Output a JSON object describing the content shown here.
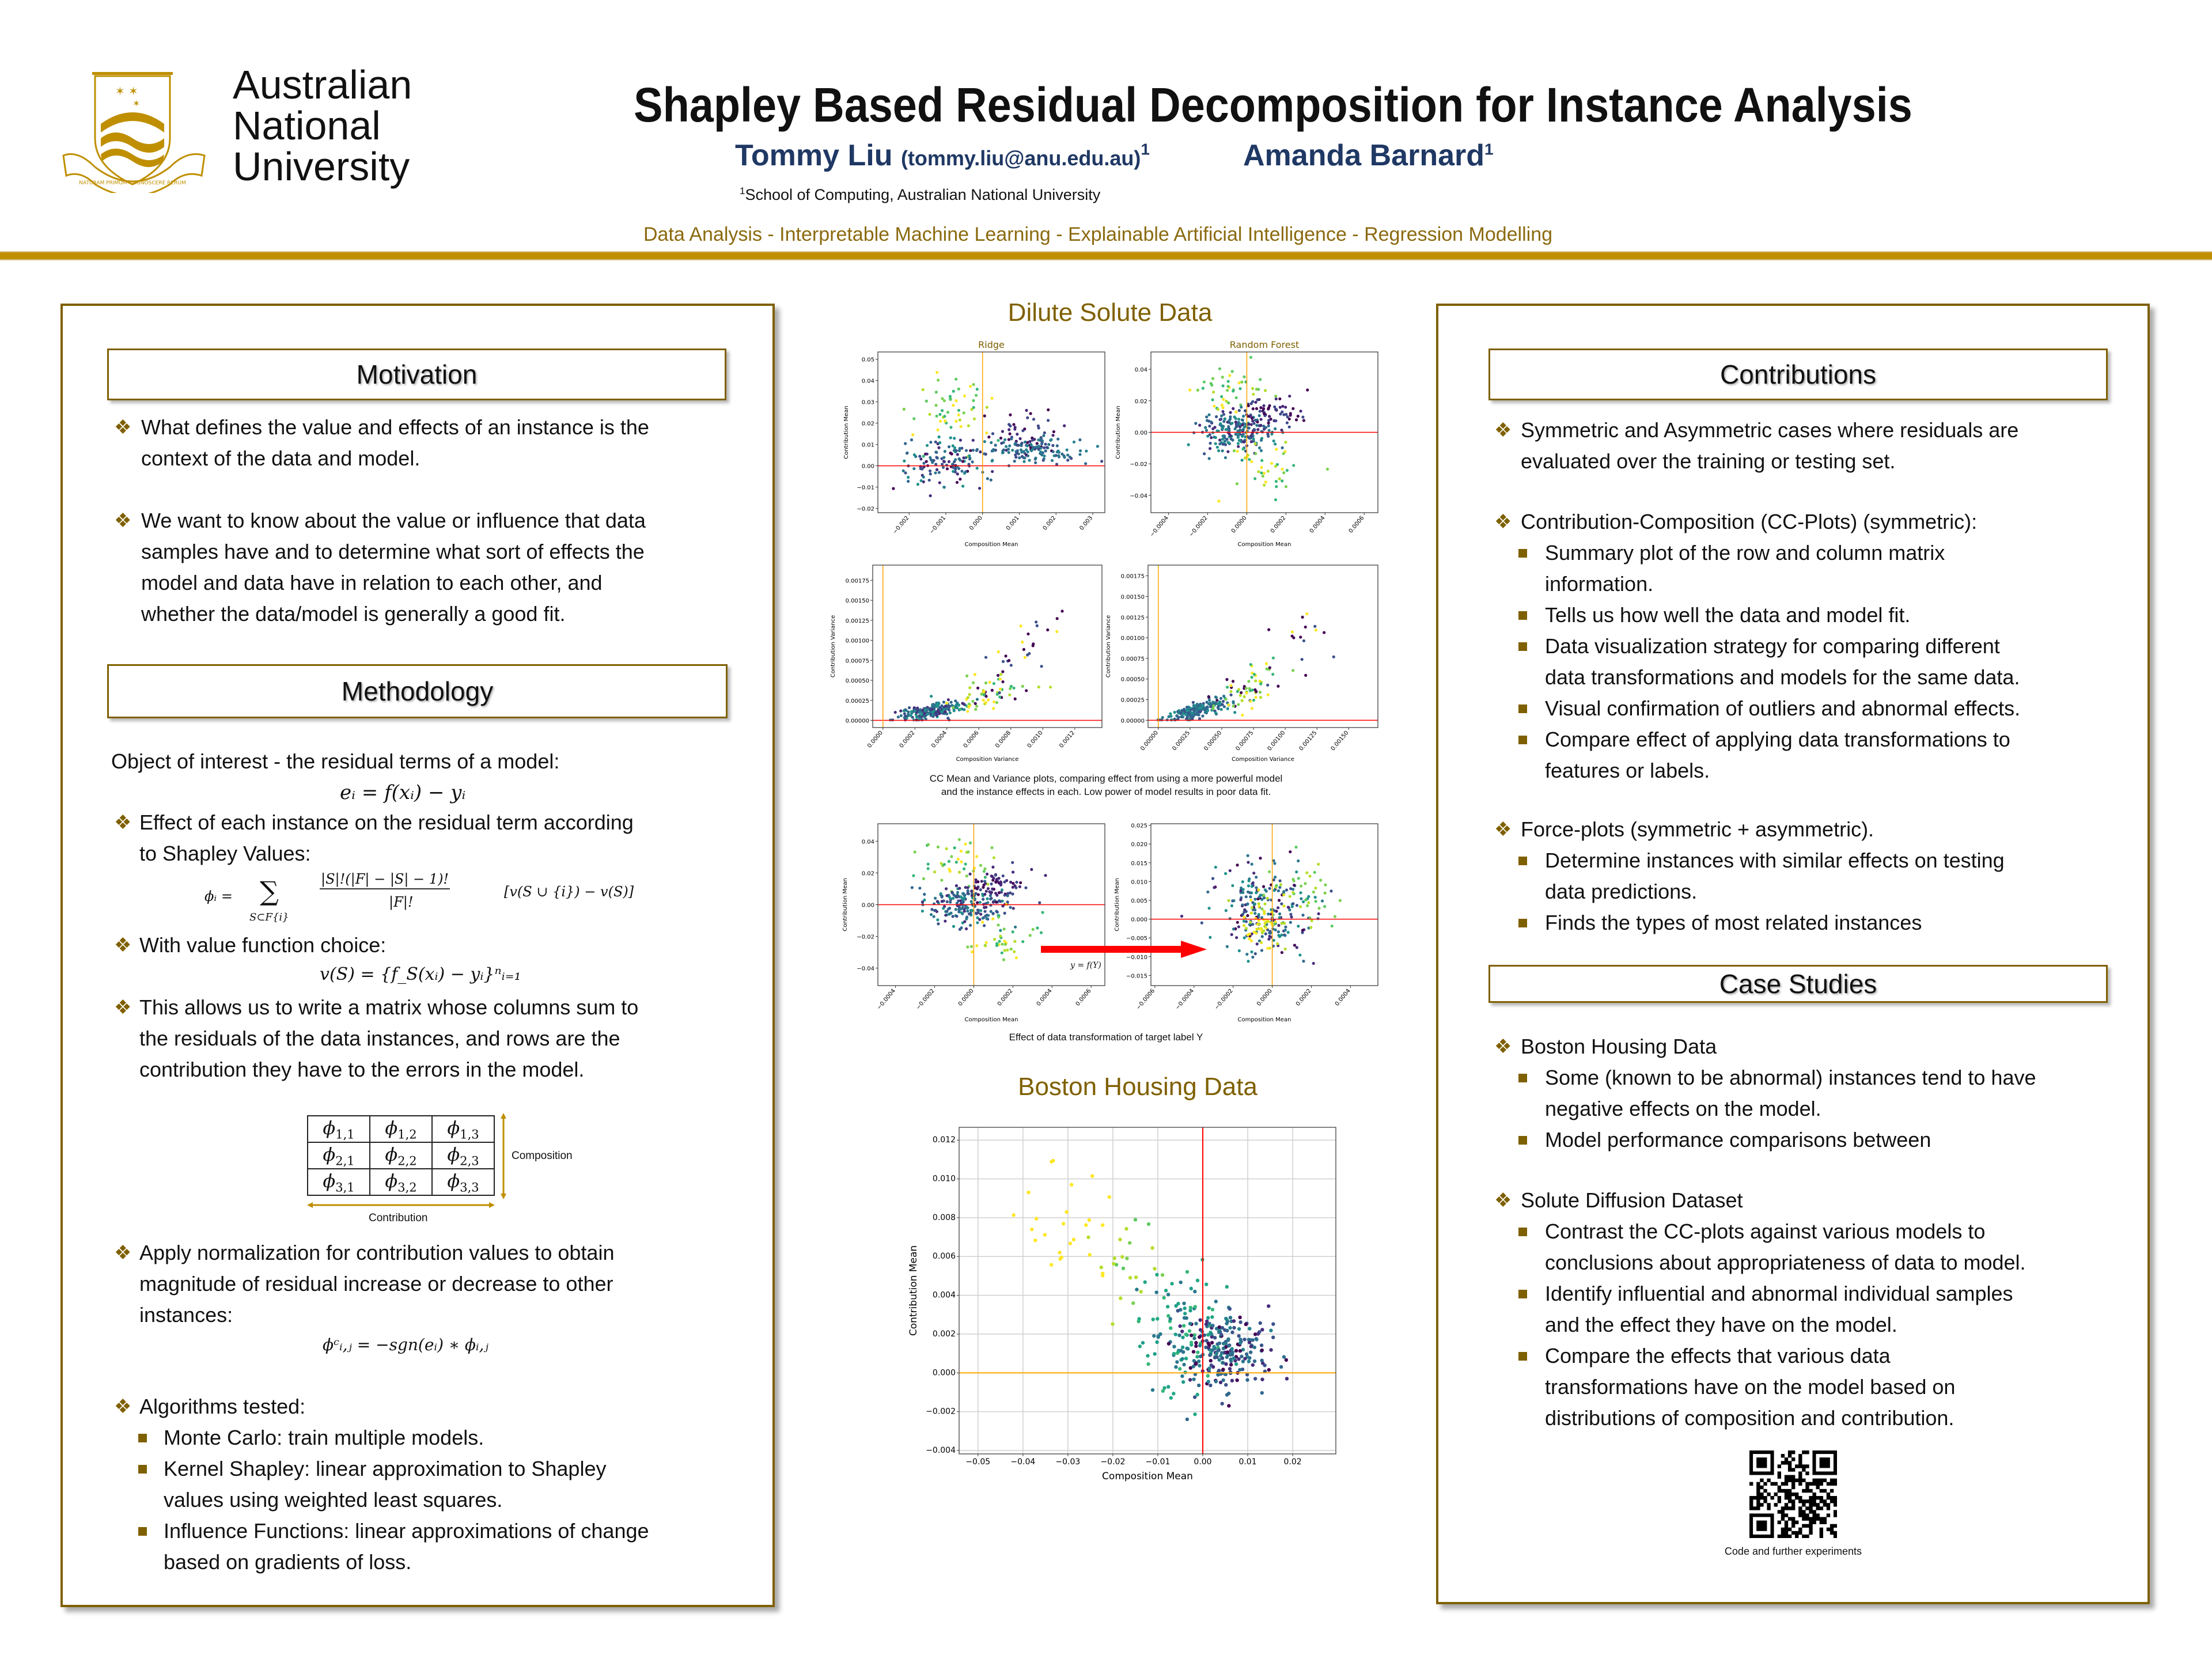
{
  "header": {
    "university": "Australian\nNational\nUniversity",
    "crest_motto": "NATURAM PRIMUM COGNOSCERE RERUM",
    "title": "Shapley Based Residual Decomposition for Instance Analysis",
    "author1_name": "Tommy Liu",
    "author1_email": "(tommy.liu@anu.edu.au)",
    "author1_sup": "1",
    "author2_name": "Amanda Barnard",
    "author2_sup": "1",
    "affiliation_sup": "1",
    "affiliation": "School of Computing, Australian National University",
    "keywords": "Data Analysis - Interpretable Machine Learning  - Explainable Artificial Intelligence - Regression Modelling"
  },
  "left": {
    "motivation_title": "Motivation",
    "motivation": [
      "What defines the value and effects of an instance is the\ncontext of the data and model.",
      "We want to know about the value or influence that data\nsamples have and to determine what sort of effects the\nmodel and data have in relation to each other, and\nwhether the data/model is generally a good fit."
    ],
    "methodology_title": "Methodology",
    "object_text": "Object of interest - the residual terms of a model:",
    "eq_residual": "eᵢ = f(xᵢ) − yᵢ",
    "effect_text": "Effect of each instance on the residual term according\nto Shapley Values:",
    "eq_shapley": {
      "lhs": "ϕᵢ =",
      "sum": "∑",
      "sum_sub": "S⊂F{i}",
      "numerator": "|S|!(|F| − |S| − 1)!",
      "denominator": "|F|!",
      "bracket": "[v(S ∪ {i}) − v(S)]"
    },
    "value_text": "With value function choice:",
    "eq_value": "v(S) = {f_S(xᵢ) − yᵢ}ⁿᵢ₌₁",
    "matrix_text": "This allows us to write a matrix whose columns sum to\nthe residuals of the data instances, and rows are the\ncontribution they have to the errors in the model.",
    "matrix": {
      "symbol": "ϕ",
      "cells": [
        [
          "1,1",
          "1,2",
          "1,3"
        ],
        [
          "2,1",
          "2,2",
          "2,3"
        ],
        [
          "3,1",
          "3,2",
          "3,3"
        ]
      ],
      "row_label": "Composition",
      "col_label": "Contribution"
    },
    "normalization_text": "Apply normalization for contribution values to obtain\nmagnitude of residual increase or decrease to other\ninstances:",
    "eq_norm": "ϕᶜᵢ,ⱼ = −sgn(eᵢ) ∗ ϕᵢ,ⱼ",
    "algorithms_text": "Algorithms tested:",
    "algorithms": [
      "Monte Carlo: train multiple models.",
      "Kernel Shapley: linear approximation to Shapley\nvalues using weighted least squares.",
      "Influence Functions: linear approximations of change\nbased on gradients of loss."
    ]
  },
  "center": {
    "dilute_title": "Dilute Solute Data",
    "cc_caption": "CC Mean and Variance plots, comparing effect from using a more powerful model\nand the instance effects in each. Low power of model results in poor data fit.",
    "transform_label": "y = f(Y)",
    "transform_caption": "Effect of data transformation of target label Y",
    "boston_title": "Boston Housing Data"
  },
  "right": {
    "contributions_title": "Contributions",
    "c1": "Symmetric and Asymmetric cases where residuals are\nevaluated over the training or testing set.",
    "c2": "Contribution-Composition (CC-Plots) (symmetric):",
    "c2_items": [
      "Summary plot of the row and column matrix\ninformation.",
      "Tells us how well the data and model fit.",
      "Data visualization strategy for comparing different\ndata transformations and models for the same data.",
      "Visual confirmation of outliers and abnormal effects.",
      "Compare effect of applying data transformations to\nfeatures or labels."
    ],
    "c3": "Force-plots (symmetric + asymmetric).",
    "c3_items": [
      "Determine instances with similar effects on testing\ndata predictions.",
      "Finds the types of most related instances"
    ],
    "case_title": "Case Studies",
    "s1": "Boston Housing Data",
    "s1_items": [
      "Some (known to be abnormal) instances tend to have\nnegative effects on the model.",
      "Model performance comparisons between"
    ],
    "s2": "Solute Diffusion Dataset",
    "s2_items": [
      "Contrast the CC-plots against various models to\nconclusions about appropriateness of data to model.",
      "Identify influential and abnormal individual samples\nand the effect they have on the model.",
      "Compare the effects that various data\ntransformations have on the model based on\ndistributions of composition and contribution."
    ],
    "qr_caption": "Code and further experiments"
  },
  "colors": {
    "gold": "#bf8f00",
    "brown": "#7f6000",
    "navy": "#1f3864",
    "hline_red": "#ff0000",
    "vline_orange": "#ffa500"
  },
  "chart_data": [
    {
      "id": "ridge",
      "type": "scatter",
      "title": "Ridge",
      "xlabel": "Composition Mean",
      "ylabel": "Contribution Mean",
      "xlim": [
        -0.00285,
        0.00333
      ],
      "ylim": [
        -0.022,
        0.0534
      ],
      "xticks": [
        "-0.002",
        "-0.001",
        "0.000",
        "0.001",
        "0.002",
        "0.003"
      ],
      "yticks": [
        "-0.02",
        "-0.01",
        "0.00",
        "0.01",
        "0.02",
        "0.03",
        "0.04",
        "0.05"
      ],
      "hline": {
        "y": 0,
        "color": "#ff0000"
      },
      "vline": {
        "x": 0,
        "color": "#ffa500"
      },
      "rotate_xticks": true,
      "clusters": [
        {
          "cx": -0.0009,
          "cy": 0.024,
          "sx": 0.0005,
          "sy": 0.009,
          "n": 55,
          "colors": [
            "#fde725",
            "#b5de2b",
            "#7ad151",
            "#5ec962",
            "#35b779"
          ]
        },
        {
          "cx": -0.001,
          "cy": 0.002,
          "sx": 0.0006,
          "sy": 0.006,
          "n": 130,
          "colors": [
            "#2a788e",
            "#21918c",
            "#31688e",
            "#3b528b",
            "#472d7b",
            "#440154"
          ]
        },
        {
          "cx": 0.0012,
          "cy": 0.015,
          "sx": 0.0005,
          "sy": 0.006,
          "n": 50,
          "colors": [
            "#440154",
            "#482878",
            "#3e4989"
          ]
        },
        {
          "cx": 0.0013,
          "cy": 0.007,
          "sx": 0.0007,
          "sy": 0.003,
          "n": 120,
          "colors": [
            "#31688e",
            "#2a788e",
            "#26828e",
            "#3e4989"
          ]
        }
      ]
    },
    {
      "id": "rf",
      "type": "scatter",
      "title": "Random Forest",
      "xlabel": "Composition Mean",
      "ylabel": "Contribution Mean",
      "xlim": [
        -0.00049,
        0.00067
      ],
      "ylim": [
        -0.051,
        0.051
      ],
      "xticks": [
        "-0.0004",
        "-0.0002",
        "0.0000",
        "0.0002",
        "0.0004",
        "0.0006"
      ],
      "yticks": [
        "-0.04",
        "-0.02",
        "0.00",
        "0.02",
        "0.04"
      ],
      "hline": {
        "y": 0,
        "color": "#ff0000"
      },
      "vline": {
        "x": 0,
        "color": "#ffa500"
      },
      "rotate_xticks": true,
      "clusters": [
        {
          "cx": -8e-05,
          "cy": 0.025,
          "sx": 0.0001,
          "sy": 0.008,
          "n": 45,
          "colors": [
            "#fde725",
            "#b5de2b",
            "#7ad151",
            "#5ec962",
            "#35b779"
          ]
        },
        {
          "cx": -4e-05,
          "cy": 0.0,
          "sx": 0.0001,
          "sy": 0.006,
          "n": 200,
          "colors": [
            "#2a788e",
            "#21918c",
            "#31688e",
            "#3b528b",
            "#472d7b"
          ]
        },
        {
          "cx": 0.00012,
          "cy": 0.012,
          "sx": 0.0001,
          "sy": 0.006,
          "n": 70,
          "colors": [
            "#440154",
            "#482878",
            "#3e4989"
          ]
        },
        {
          "cx": 0.0001,
          "cy": -0.022,
          "sx": 0.0001,
          "sy": 0.009,
          "n": 40,
          "colors": [
            "#7ad151",
            "#b5de2b",
            "#fde725",
            "#35b779"
          ]
        }
      ]
    },
    {
      "id": "var_ridge",
      "type": "scatter",
      "title": "",
      "xlabel": "Composition Variance",
      "ylabel": "Contribution Variance",
      "xlim": [
        -6.4e-05,
        0.00137
      ],
      "ylim": [
        -9e-05,
        0.00194
      ],
      "xticks": [
        "0.0000",
        "0.0002",
        "0.0004",
        "0.0006",
        "0.0008",
        "0.0010",
        "0.0012"
      ],
      "yticks": [
        "0.00000",
        "0.00025",
        "0.00050",
        "0.00075",
        "0.00100",
        "0.00125",
        "0.00150",
        "0.00175"
      ],
      "hline": {
        "y": 0,
        "color": "#ff0000"
      },
      "vline": {
        "x": 0,
        "color": "#ffa500"
      },
      "rotate_xticks": true,
      "corr": true,
      "clusters": [
        {
          "cx": 0.0003,
          "cy": 0.00012,
          "sx": 0.0001,
          "sy": 8e-05,
          "n": 200,
          "colors": [
            "#2a788e",
            "#21918c",
            "#31688e",
            "#3b528b",
            "#472d7b"
          ]
        },
        {
          "cx": 0.0007,
          "cy": 0.0004,
          "sx": 0.00012,
          "sy": 0.0002,
          "n": 60,
          "colors": [
            "#7ad151",
            "#b5de2b",
            "#fde725",
            "#35b779",
            "#440154"
          ]
        },
        {
          "cx": 0.0009,
          "cy": 0.0009,
          "sx": 0.0001,
          "sy": 0.0003,
          "n": 25,
          "colors": [
            "#fde725",
            "#440154",
            "#3b528b"
          ]
        }
      ]
    },
    {
      "id": "var_rf",
      "type": "scatter",
      "title": "",
      "xlabel": "Composition Variance",
      "ylabel": "Contribution Variance",
      "xlim": [
        -8.1e-05,
        0.00173
      ],
      "ylim": [
        -8.8e-05,
        0.00188
      ],
      "xticks": [
        "0.00000",
        "0.00025",
        "0.00050",
        "0.00075",
        "0.00100",
        "0.00125",
        "0.00150"
      ],
      "yticks": [
        "0.00000",
        "0.00025",
        "0.00050",
        "0.00075",
        "0.00100",
        "0.00125",
        "0.00150",
        "0.00175"
      ],
      "hline": {
        "y": 0,
        "color": "#ff0000"
      },
      "vline": {
        "x": 0,
        "color": "#ffa500"
      },
      "rotate_xticks": true,
      "corr": true,
      "clusters": [
        {
          "cx": 0.0003,
          "cy": 0.00012,
          "sx": 0.00012,
          "sy": 8e-05,
          "n": 200,
          "colors": [
            "#2a788e",
            "#21918c",
            "#31688e",
            "#3b528b"
          ]
        },
        {
          "cx": 0.0007,
          "cy": 0.0004,
          "sx": 0.00015,
          "sy": 0.0002,
          "n": 60,
          "colors": [
            "#7ad151",
            "#b5de2b",
            "#fde725",
            "#35b779",
            "#440154"
          ]
        },
        {
          "cx": 0.0011,
          "cy": 0.001,
          "sx": 0.0002,
          "sy": 0.0003,
          "n": 15,
          "colors": [
            "#fde725",
            "#440154",
            "#3b528b"
          ]
        }
      ]
    },
    {
      "id": "tr_before",
      "type": "scatter",
      "title": "",
      "xlabel": "Composition Mean",
      "ylabel": "Contribution Mean",
      "xlim": [
        -0.00049,
        0.00067
      ],
      "ylim": [
        -0.051,
        0.051
      ],
      "xticks": [
        "-0.0004",
        "-0.0002",
        "0.0000",
        "0.0002",
        "0.0004",
        "0.0006"
      ],
      "yticks": [
        "-0.04",
        "-0.02",
        "0.00",
        "0.02",
        "0.04"
      ],
      "hline": {
        "y": 0,
        "color": "#ff0000"
      },
      "vline": {
        "x": 0,
        "color": "#ffa500"
      },
      "rotate_xticks": true,
      "clusters": [
        {
          "cx": -8e-05,
          "cy": 0.025,
          "sx": 0.0001,
          "sy": 0.008,
          "n": 45,
          "colors": [
            "#fde725",
            "#b5de2b",
            "#7ad151",
            "#5ec962",
            "#35b779"
          ]
        },
        {
          "cx": -4e-05,
          "cy": 0.0,
          "sx": 0.0001,
          "sy": 0.006,
          "n": 200,
          "colors": [
            "#2a788e",
            "#21918c",
            "#31688e",
            "#3b528b",
            "#472d7b"
          ]
        },
        {
          "cx": 0.00012,
          "cy": 0.012,
          "sx": 0.0001,
          "sy": 0.006,
          "n": 70,
          "colors": [
            "#440154",
            "#482878",
            "#3e4989"
          ]
        },
        {
          "cx": 0.0001,
          "cy": -0.022,
          "sx": 0.0001,
          "sy": 0.009,
          "n": 40,
          "colors": [
            "#7ad151",
            "#b5de2b",
            "#fde725",
            "#35b779"
          ]
        }
      ]
    },
    {
      "id": "tr_after",
      "type": "scatter",
      "title": "",
      "xlabel": "Composition Mean",
      "ylabel": "Contribution Mean",
      "xlim": [
        -0.00062,
        0.00054
      ],
      "ylim": [
        -0.0177,
        0.0254
      ],
      "xticks": [
        "-0.0006",
        "-0.0004",
        "-0.0002",
        "0.0000",
        "0.0002",
        "0.0004"
      ],
      "yticks": [
        "-0.015",
        "-0.010",
        "-0.005",
        "0.000",
        "0.005",
        "0.010",
        "0.015",
        "0.020",
        "0.025"
      ],
      "hline": {
        "y": 0,
        "color": "#ff0000"
      },
      "vline": {
        "x": 0,
        "color": "#ffa500"
      },
      "rotate_xticks": true,
      "clusters": [
        {
          "cx": -5e-05,
          "cy": 0.003,
          "sx": 0.00012,
          "sy": 0.006,
          "n": 220,
          "colors": [
            "#2a788e",
            "#21918c",
            "#31688e",
            "#3b528b",
            "#472d7b",
            "#440154"
          ]
        },
        {
          "cx": -3e-05,
          "cy": -0.001,
          "sx": 6e-05,
          "sy": 0.003,
          "n": 50,
          "colors": [
            "#fde725",
            "#b5de2b",
            "#dde318"
          ]
        },
        {
          "cx": 0.00015,
          "cy": 0.006,
          "sx": 0.0001,
          "sy": 0.005,
          "n": 40,
          "colors": [
            "#7ad151",
            "#5ec962",
            "#b5de2b"
          ]
        }
      ]
    },
    {
      "id": "boston",
      "type": "scatter",
      "title": "",
      "xlabel": "Composition Mean",
      "ylabel": "Contribution Mean",
      "xlim": [
        -0.0542,
        0.0296
      ],
      "ylim": [
        -0.00418,
        0.01266
      ],
      "xticks": [
        "-0.05",
        "-0.04",
        "-0.03",
        "-0.02",
        "-0.01",
        "0.00",
        "0.01",
        "0.02"
      ],
      "yticks": [
        "-0.004",
        "-0.002",
        "0.000",
        "0.002",
        "0.004",
        "0.006",
        "0.008",
        "0.010",
        "0.012"
      ],
      "hline": {
        "y": 0,
        "color": "#ffa500"
      },
      "vline": {
        "x": 0,
        "color": "#ff0000"
      },
      "grid": true,
      "rotate_xticks": false,
      "clusters": [
        {
          "cx": -0.03,
          "cy": 0.0075,
          "sx": 0.009,
          "sy": 0.0017,
          "n": 25,
          "colors": [
            "#fde725"
          ]
        },
        {
          "cx": -0.016,
          "cy": 0.0058,
          "sx": 0.004,
          "sy": 0.0012,
          "n": 22,
          "colors": [
            "#7ad151",
            "#5ec962",
            "#b5de2b"
          ]
        },
        {
          "cx": -0.005,
          "cy": 0.002,
          "sx": 0.005,
          "sy": 0.0015,
          "n": 110,
          "colors": [
            "#22a884",
            "#1f9e89",
            "#2a788e",
            "#35b779"
          ]
        },
        {
          "cx": 0.005,
          "cy": 0.0011,
          "sx": 0.005,
          "sy": 0.0011,
          "n": 220,
          "colors": [
            "#3b528b",
            "#31688e",
            "#2c728e",
            "#440154",
            "#472d7b",
            "#26828e"
          ]
        }
      ]
    }
  ]
}
